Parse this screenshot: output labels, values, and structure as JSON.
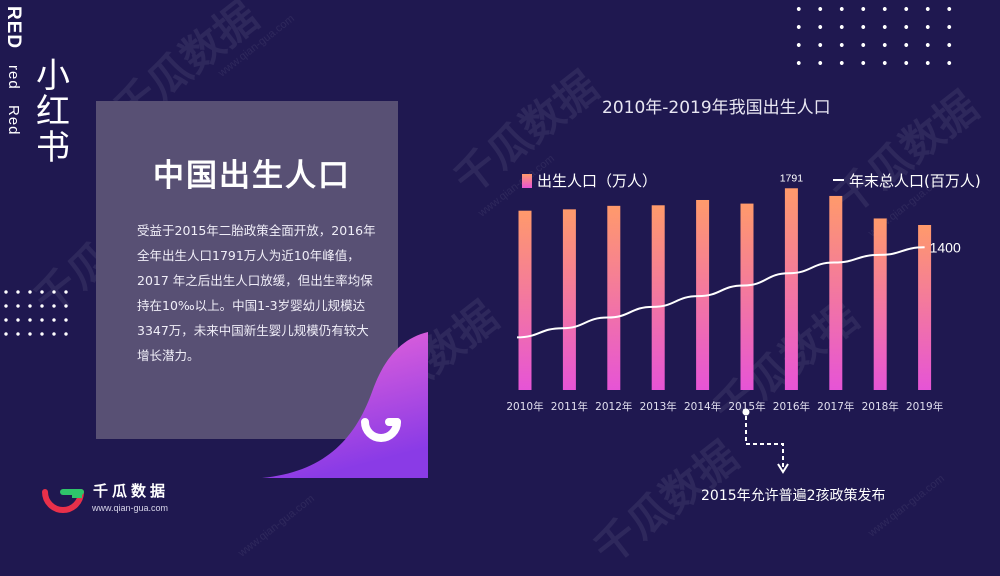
{
  "side": {
    "red_caps": "RED",
    "red_lower": "red",
    "red_title": "Red",
    "xhs": [
      "小",
      "红",
      "书"
    ]
  },
  "panel": {
    "title": "中国出生人口",
    "body_lines": [
      "受益于2015年二胎政策全面开放，2016年",
      "全年出生人口1791万人为近10年峰值，",
      "2017 年之后出生人口放缓，但出生率均保",
      "持在10‰以上。中国1-3岁婴幼儿规模达",
      "3347万，未来中国新生婴儿规模仍有较大",
      "增长潜力。"
    ]
  },
  "brand": {
    "name": "千瓜数据",
    "url": "www.qian-gua.com",
    "watermark": "千瓜数据",
    "watermark_url": "www.qian-gua.com"
  },
  "annotation": {
    "text": "2015年允许普遍2孩政策发布"
  },
  "colors": {
    "background": "#1f1850",
    "panel": "#585074",
    "bar_top": "#ff9a6b",
    "bar_bottom": "#e654d6",
    "line": "#ffffff",
    "accent_pink": "#e23ec8",
    "logo_red": "#e8304a",
    "logo_green": "#2fc46a"
  },
  "chart_data": {
    "type": "bar",
    "title": "2010年-2019年我国出生人口",
    "categories": [
      "2010年",
      "2011年",
      "2012年",
      "2013年",
      "2014年",
      "2015年",
      "2016年",
      "2017年",
      "2018年",
      "2019年"
    ],
    "series": [
      {
        "name": "出生人口（万人）",
        "type": "bar",
        "values": [
          1592,
          1604,
          1635,
          1640,
          1687,
          1655,
          1791,
          1723,
          1523,
          1465
        ],
        "data_labels": {
          "2016年": "1791"
        }
      },
      {
        "name": "年末总人口(百万人)",
        "type": "line",
        "values": [
          1341,
          1347,
          1354,
          1361,
          1368,
          1375,
          1383,
          1390,
          1395,
          1400
        ],
        "data_labels": {
          "2019年": "1400"
        }
      }
    ],
    "bar_ylim": [
      0,
      1900
    ],
    "line_ylim": [
      1300,
      1410
    ],
    "legend_position": "top",
    "grid": false
  }
}
